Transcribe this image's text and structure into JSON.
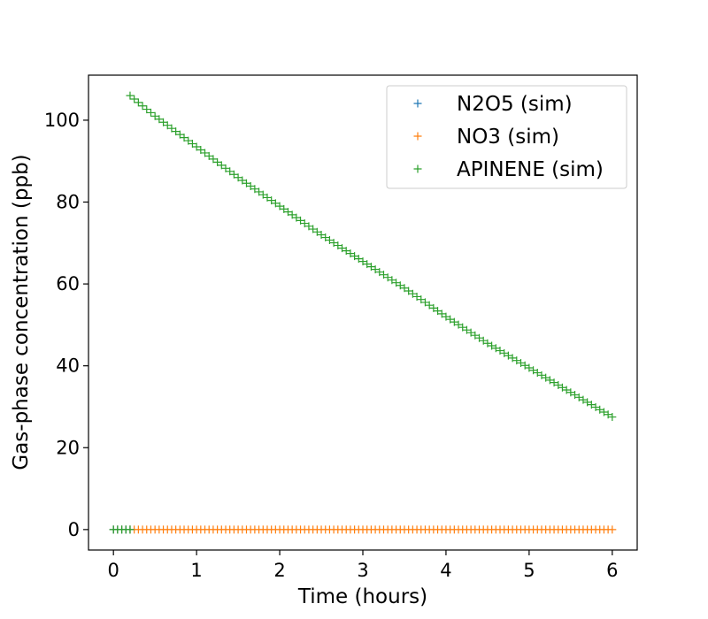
{
  "chart_data": {
    "type": "scatter",
    "title": "",
    "xlabel": "Time (hours)",
    "ylabel": "Gas-phase concentration (ppb)",
    "xlim": [
      -0.3,
      6.3
    ],
    "ylim": [
      -5,
      111
    ],
    "xticks": [
      0,
      1,
      2,
      3,
      4,
      5,
      6
    ],
    "yticks": [
      0,
      20,
      40,
      60,
      80,
      100
    ],
    "grid": false,
    "legend_position": "upper-right",
    "marker": "+",
    "series": [
      {
        "name": "N2O5 (sim)",
        "color": "#1f77b4",
        "points": [
          [
            0.0,
            0.0
          ],
          [
            0.05,
            0.0
          ],
          [
            0.1,
            0.0
          ],
          [
            0.15,
            0.0
          ],
          [
            0.2,
            0.0
          ]
        ]
      },
      {
        "name": "NO3 (sim)",
        "color": "#ff7f0e",
        "x_start": 0.0,
        "x_end": 6.0,
        "x_step": 0.05,
        "constant_y": 0.0
      },
      {
        "name": "APINENE (sim)",
        "color": "#2ca02c",
        "pre_points": [
          [
            0.0,
            0.0
          ],
          [
            0.05,
            0.0
          ],
          [
            0.1,
            0.0
          ],
          [
            0.15,
            0.0
          ],
          [
            0.2,
            0.0
          ]
        ],
        "x_start": 0.2,
        "x_end": 6.0,
        "x_step": 0.05,
        "anchors": [
          [
            0.2,
            106
          ],
          [
            0.5,
            101
          ],
          [
            1.0,
            93.5
          ],
          [
            1.5,
            86
          ],
          [
            2.0,
            79
          ],
          [
            2.5,
            72
          ],
          [
            3.0,
            65.5
          ],
          [
            3.5,
            59
          ],
          [
            4.0,
            52
          ],
          [
            4.5,
            45.5
          ],
          [
            5.0,
            39.5
          ],
          [
            5.5,
            33.5
          ],
          [
            6.0,
            27.5
          ]
        ]
      }
    ]
  }
}
